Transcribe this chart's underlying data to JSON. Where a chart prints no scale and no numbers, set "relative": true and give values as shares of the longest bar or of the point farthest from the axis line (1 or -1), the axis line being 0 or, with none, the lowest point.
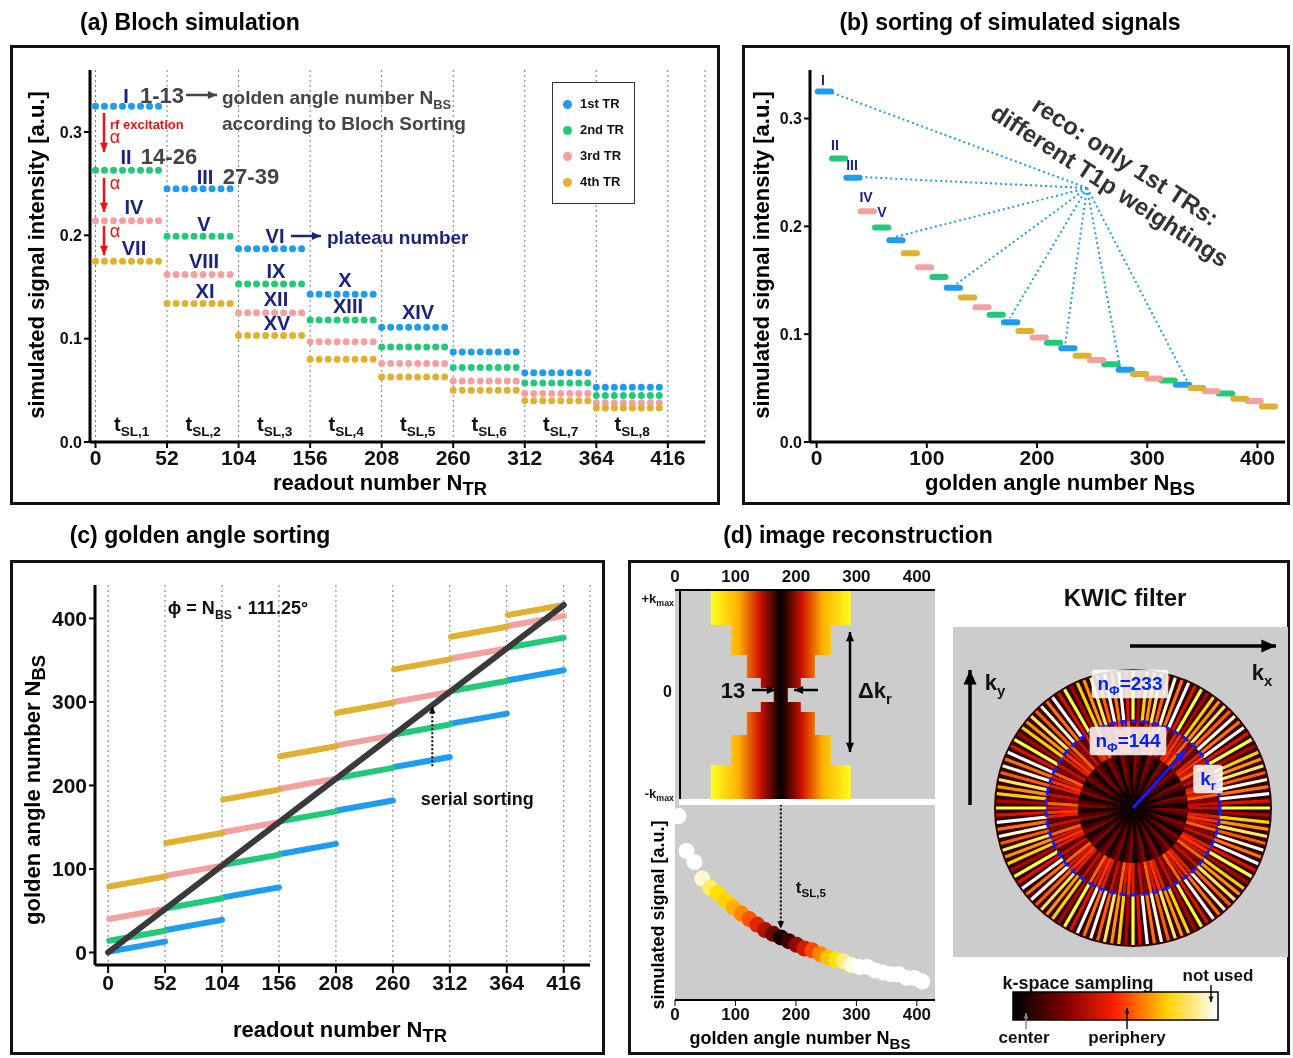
{
  "chart_data": [
    {
      "type": "line",
      "title": "(a) Bloch simulation",
      "xlabel": "readout number N$_{TR}$",
      "ylabel": "simulated signal intensity [a.u.]",
      "series": [
        {
          "name": "1st TR",
          "color": "#1e9cf0",
          "x": [
            0,
            52
          ],
          "values": [
            0.325,
            0.325
          ]
        },
        {
          "color": "#1e9cf0",
          "x": [
            52,
            104
          ],
          "values": [
            0.245,
            0.245
          ]
        },
        {
          "color": "#1e9cf0",
          "x": [
            104,
            156
          ],
          "values": [
            0.187,
            0.187
          ]
        },
        {
          "color": "#1e9cf0",
          "x": [
            156,
            208
          ],
          "values": [
            0.143,
            0.143
          ]
        },
        {
          "color": "#1e9cf0",
          "x": [
            208,
            260
          ],
          "values": [
            0.111,
            0.111
          ]
        },
        {
          "color": "#1e9cf0",
          "x": [
            260,
            312
          ],
          "values": [
            0.087,
            0.087
          ]
        },
        {
          "color": "#1e9cf0",
          "x": [
            312,
            364
          ],
          "values": [
            0.067,
            0.067
          ]
        },
        {
          "color": "#1e9cf0",
          "x": [
            364,
            416
          ],
          "values": [
            0.053,
            0.053
          ]
        },
        {
          "name": "2nd TR",
          "color": "#22c97a",
          "x": [
            0,
            52
          ],
          "values": [
            0.263,
            0.263
          ]
        },
        {
          "color": "#22c97a",
          "x": [
            52,
            104
          ],
          "values": [
            0.199,
            0.199
          ]
        },
        {
          "color": "#22c97a",
          "x": [
            104,
            156
          ],
          "values": [
            0.153,
            0.153
          ]
        },
        {
          "color": "#22c97a",
          "x": [
            156,
            208
          ],
          "values": [
            0.118,
            0.118
          ]
        },
        {
          "color": "#22c97a",
          "x": [
            208,
            260
          ],
          "values": [
            0.092,
            0.092
          ]
        },
        {
          "color": "#22c97a",
          "x": [
            260,
            312
          ],
          "values": [
            0.072,
            0.072
          ]
        },
        {
          "color": "#22c97a",
          "x": [
            312,
            364
          ],
          "values": [
            0.057,
            0.057
          ]
        },
        {
          "color": "#22c97a",
          "x": [
            364,
            416
          ],
          "values": [
            0.045,
            0.045
          ]
        },
        {
          "name": "3rd TR",
          "color": "#f4a0a0",
          "x": [
            0,
            52
          ],
          "values": [
            0.214,
            0.214
          ]
        },
        {
          "color": "#f4a0a0",
          "x": [
            52,
            104
          ],
          "values": [
            0.162,
            0.162
          ]
        },
        {
          "color": "#f4a0a0",
          "x": [
            104,
            156
          ],
          "values": [
            0.125,
            0.125
          ]
        },
        {
          "color": "#f4a0a0",
          "x": [
            156,
            208
          ],
          "values": [
            0.097,
            0.097
          ]
        },
        {
          "color": "#f4a0a0",
          "x": [
            208,
            260
          ],
          "values": [
            0.076,
            0.076
          ]
        },
        {
          "color": "#f4a0a0",
          "x": [
            260,
            312
          ],
          "values": [
            0.059,
            0.059
          ]
        },
        {
          "color": "#f4a0a0",
          "x": [
            312,
            364
          ],
          "values": [
            0.047,
            0.047
          ]
        },
        {
          "color": "#f4a0a0",
          "x": [
            364,
            416
          ],
          "values": [
            0.038,
            0.038
          ]
        },
        {
          "name": "4th TR",
          "color": "#e0b030",
          "x": [
            0,
            52
          ],
          "values": [
            0.175,
            0.175
          ]
        },
        {
          "color": "#e0b030",
          "x": [
            52,
            104
          ],
          "values": [
            0.134,
            0.134
          ]
        },
        {
          "color": "#e0b030",
          "x": [
            104,
            156
          ],
          "values": [
            0.103,
            0.103
          ]
        },
        {
          "color": "#e0b030",
          "x": [
            156,
            208
          ],
          "values": [
            0.08,
            0.08
          ]
        },
        {
          "color": "#e0b030",
          "x": [
            208,
            260
          ],
          "values": [
            0.063,
            0.063
          ]
        },
        {
          "color": "#e0b030",
          "x": [
            260,
            312
          ],
          "values": [
            0.05,
            0.05
          ]
        },
        {
          "color": "#e0b030",
          "x": [
            312,
            364
          ],
          "values": [
            0.04,
            0.04
          ]
        },
        {
          "color": "#e0b030",
          "x": [
            364,
            416
          ],
          "values": [
            0.033,
            0.033
          ]
        }
      ],
      "xlim": [
        -4,
        443
      ],
      "xticks": [
        0,
        52,
        104,
        156,
        208,
        260,
        312,
        364,
        416
      ],
      "ylim": [
        0,
        0.36
      ],
      "yticks": [
        {
          "value": 0,
          "label": "0.0"
        },
        0.1,
        0.2,
        0.3
      ],
      "grid": "x",
      "legend": "top right",
      "line_style": "dotted",
      "annotations": [
        "I",
        "II",
        "III",
        "IV",
        "V",
        "VI",
        "VII",
        "VIII",
        "IX",
        "X",
        "XI",
        "XII",
        "XIII",
        "XIV",
        "XV",
        "1-13",
        "14-26",
        "27-39",
        "golden angle number N$_{BS}$",
        "according to Bloch Sorting",
        "rf excitation",
        "α",
        "α",
        "α",
        "plateau number",
        "t$_{SL,1}$",
        "t$_{SL,2}$",
        "t$_{SL,3}$",
        "t$_{SL,4}$",
        "t$_{SL,5}$",
        "t$_{SL,6}$",
        "t$_{SL,7}$",
        "t$_{SL,8}$"
      ]
    },
    {
      "type": "line",
      "title": "(b) sorting of simulated signals",
      "xlabel": "golden angle number N$_{BS}$",
      "ylabel": "simulated signal intensity [a.u.]",
      "line_style": "solid",
      "series": [
        {
          "color": "#1e9cf0",
          "x": [
            1,
            13
          ],
          "values": [
            0.325,
            0.325
          ]
        },
        {
          "color": "#1e9cf0",
          "x": [
            27,
            39
          ],
          "values": [
            0.245,
            0.245
          ]
        },
        {
          "color": "#1e9cf0",
          "x": [
            66,
            78
          ],
          "values": [
            0.187,
            0.187
          ]
        },
        {
          "color": "#1e9cf0",
          "x": [
            118,
            130
          ],
          "values": [
            0.143,
            0.143
          ]
        },
        {
          "color": "#1e9cf0",
          "x": [
            170,
            182
          ],
          "values": [
            0.111,
            0.111
          ]
        },
        {
          "color": "#1e9cf0",
          "x": [
            222,
            234
          ],
          "values": [
            0.087,
            0.087
          ]
        },
        {
          "color": "#1e9cf0",
          "x": [
            274,
            286
          ],
          "values": [
            0.067,
            0.067
          ]
        },
        {
          "color": "#1e9cf0",
          "x": [
            326,
            338
          ],
          "values": [
            0.053,
            0.053
          ]
        },
        {
          "color": "#22c97a",
          "x": [
            14,
            26
          ],
          "values": [
            0.263,
            0.263
          ]
        },
        {
          "color": "#22c97a",
          "x": [
            53,
            65
          ],
          "values": [
            0.199,
            0.199
          ]
        },
        {
          "color": "#22c97a",
          "x": [
            105,
            117
          ],
          "values": [
            0.153,
            0.153
          ]
        },
        {
          "color": "#22c97a",
          "x": [
            157,
            169
          ],
          "values": [
            0.118,
            0.118
          ]
        },
        {
          "color": "#22c97a",
          "x": [
            209,
            221
          ],
          "values": [
            0.092,
            0.092
          ]
        },
        {
          "color": "#22c97a",
          "x": [
            261,
            273
          ],
          "values": [
            0.072,
            0.072
          ]
        },
        {
          "color": "#22c97a",
          "x": [
            313,
            325
          ],
          "values": [
            0.057,
            0.057
          ]
        },
        {
          "color": "#22c97a",
          "x": [
            365,
            377
          ],
          "values": [
            0.045,
            0.045
          ]
        },
        {
          "color": "#f4a0a0",
          "x": [
            40,
            52
          ],
          "values": [
            0.214,
            0.214
          ]
        },
        {
          "color": "#f4a0a0",
          "x": [
            92,
            104
          ],
          "values": [
            0.162,
            0.162
          ]
        },
        {
          "color": "#f4a0a0",
          "x": [
            144,
            156
          ],
          "values": [
            0.125,
            0.125
          ]
        },
        {
          "color": "#f4a0a0",
          "x": [
            196,
            208
          ],
          "values": [
            0.097,
            0.097
          ]
        },
        {
          "color": "#f4a0a0",
          "x": [
            248,
            260
          ],
          "values": [
            0.076,
            0.076
          ]
        },
        {
          "color": "#f4a0a0",
          "x": [
            300,
            312
          ],
          "values": [
            0.059,
            0.059
          ]
        },
        {
          "color": "#f4a0a0",
          "x": [
            352,
            364
          ],
          "values": [
            0.047,
            0.047
          ]
        },
        {
          "color": "#f4a0a0",
          "x": [
            391,
            403
          ],
          "values": [
            0.038,
            0.038
          ]
        },
        {
          "color": "#e0b030",
          "x": [
            79,
            91
          ],
          "values": [
            0.175,
            0.175
          ]
        },
        {
          "color": "#e0b030",
          "x": [
            131,
            143
          ],
          "values": [
            0.134,
            0.134
          ]
        },
        {
          "color": "#e0b030",
          "x": [
            183,
            195
          ],
          "values": [
            0.103,
            0.103
          ]
        },
        {
          "color": "#e0b030",
          "x": [
            235,
            247
          ],
          "values": [
            0.08,
            0.08
          ]
        },
        {
          "color": "#e0b030",
          "x": [
            287,
            299
          ],
          "values": [
            0.063,
            0.063
          ]
        },
        {
          "color": "#e0b030",
          "x": [
            339,
            351
          ],
          "values": [
            0.05,
            0.05
          ]
        },
        {
          "color": "#e0b030",
          "x": [
            378,
            390
          ],
          "values": [
            0.04,
            0.04
          ]
        },
        {
          "color": "#e0b030",
          "x": [
            404,
            416
          ],
          "values": [
            0.033,
            0.033
          ]
        }
      ],
      "xlim": [
        -6,
        425
      ],
      "xticks": [
        0,
        100,
        200,
        300,
        400
      ],
      "ylim": [
        0,
        0.345
      ],
      "yticks": [
        {
          "value": 0,
          "label": "0.0"
        },
        0.1,
        0.2,
        0.3
      ],
      "annotations": [
        "I",
        "II",
        "III",
        "IV",
        "V",
        {
          "text": "reco: only 1st TRs: different T1p weightings",
          "x": 338,
          "y": 0.053
        }
      ]
    },
    {
      "type": "line",
      "title": "(c) golden angle sorting",
      "xlabel": "readout number N$_{TR}$",
      "ylabel": "golden angle number N$_{BS}$",
      "line_style": "solid",
      "grid": "x",
      "series": [
        {
          "color": "#1e9cf0",
          "x": [
            1,
            52
          ],
          "values": [
            1,
            13
          ]
        },
        {
          "color": "#1e9cf0",
          "x": [
            53,
            104
          ],
          "values": [
            27,
            39
          ]
        },
        {
          "color": "#1e9cf0",
          "x": [
            105,
            156
          ],
          "values": [
            66,
            78
          ]
        },
        {
          "color": "#1e9cf0",
          "x": [
            157,
            208
          ],
          "values": [
            118,
            130
          ]
        },
        {
          "color": "#1e9cf0",
          "x": [
            209,
            260
          ],
          "values": [
            170,
            182
          ]
        },
        {
          "color": "#1e9cf0",
          "x": [
            261,
            312
          ],
          "values": [
            222,
            234
          ]
        },
        {
          "color": "#1e9cf0",
          "x": [
            313,
            364
          ],
          "values": [
            274,
            286
          ]
        },
        {
          "color": "#1e9cf0",
          "x": [
            365,
            416
          ],
          "values": [
            326,
            338
          ]
        },
        {
          "color": "#22c97a",
          "x": [
            1,
            52
          ],
          "values": [
            14,
            26
          ]
        },
        {
          "color": "#22c97a",
          "x": [
            53,
            104
          ],
          "values": [
            53,
            65
          ]
        },
        {
          "color": "#22c97a",
          "x": [
            105,
            156
          ],
          "values": [
            105,
            117
          ]
        },
        {
          "color": "#22c97a",
          "x": [
            157,
            208
          ],
          "values": [
            157,
            169
          ]
        },
        {
          "color": "#22c97a",
          "x": [
            209,
            260
          ],
          "values": [
            209,
            221
          ]
        },
        {
          "color": "#22c97a",
          "x": [
            261,
            312
          ],
          "values": [
            261,
            273
          ]
        },
        {
          "color": "#22c97a",
          "x": [
            313,
            364
          ],
          "values": [
            313,
            325
          ]
        },
        {
          "color": "#22c97a",
          "x": [
            365,
            416
          ],
          "values": [
            365,
            377
          ]
        },
        {
          "color": "#f4a0a0",
          "x": [
            1,
            52
          ],
          "values": [
            40,
            52
          ]
        },
        {
          "color": "#f4a0a0",
          "x": [
            53,
            104
          ],
          "values": [
            92,
            104
          ]
        },
        {
          "color": "#f4a0a0",
          "x": [
            105,
            156
          ],
          "values": [
            144,
            156
          ]
        },
        {
          "color": "#f4a0a0",
          "x": [
            157,
            208
          ],
          "values": [
            196,
            208
          ]
        },
        {
          "color": "#f4a0a0",
          "x": [
            209,
            260
          ],
          "values": [
            248,
            260
          ]
        },
        {
          "color": "#f4a0a0",
          "x": [
            261,
            312
          ],
          "values": [
            300,
            312
          ]
        },
        {
          "color": "#f4a0a0",
          "x": [
            313,
            364
          ],
          "values": [
            352,
            364
          ]
        },
        {
          "color": "#f4a0a0",
          "x": [
            365,
            416
          ],
          "values": [
            391,
            403
          ]
        },
        {
          "color": "#e0b030",
          "x": [
            1,
            52
          ],
          "values": [
            79,
            91
          ]
        },
        {
          "color": "#e0b030",
          "x": [
            53,
            104
          ],
          "values": [
            131,
            143
          ]
        },
        {
          "color": "#e0b030",
          "x": [
            105,
            156
          ],
          "values": [
            183,
            195
          ]
        },
        {
          "color": "#e0b030",
          "x": [
            157,
            208
          ],
          "values": [
            235,
            247
          ]
        },
        {
          "color": "#e0b030",
          "x": [
            209,
            260
          ],
          "values": [
            287,
            299
          ]
        },
        {
          "color": "#e0b030",
          "x": [
            261,
            312
          ],
          "values": [
            339,
            351
          ]
        },
        {
          "color": "#e0b030",
          "x": [
            313,
            364
          ],
          "values": [
            378,
            390
          ]
        },
        {
          "color": "#e0b030",
          "x": [
            365,
            416
          ],
          "values": [
            404,
            416
          ]
        },
        {
          "color": "#3a3a3a",
          "x": [
            0,
            416
          ],
          "values": [
            0,
            416
          ]
        }
      ],
      "xlim": [
        -12,
        440
      ],
      "xticks": [
        0,
        52,
        104,
        156,
        208,
        260,
        312,
        364,
        416
      ],
      "ylim": [
        -15,
        440
      ],
      "yticks": [
        0,
        100,
        200,
        300,
        400
      ],
      "annotations": [
        "ϕ = N$_{BS}$ · 111.25°",
        {
          "text": "serial sorting",
          "x": 296,
          "y": 296
        }
      ]
    },
    {
      "type": "scatter",
      "title": "(d) image reconstruction",
      "relative": true,
      "marker": "circle",
      "x2lim": [
        0,
        430
      ],
      "x2ticks": [
        0,
        100,
        200,
        300,
        400
      ],
      "xlabel": "golden angle number N$_{BS}$",
      "ylabel": "simulated signal [a.u.]",
      "xlim": [
        0,
        430
      ],
      "xticks": [
        0,
        100,
        200,
        300,
        400
      ],
      "x": [
        6,
        19,
        32,
        45,
        58,
        71,
        84,
        97,
        110,
        123,
        136,
        149,
        162,
        175,
        188,
        201,
        214,
        227,
        240,
        253,
        266,
        279,
        292,
        305,
        318,
        331,
        344,
        357,
        370,
        383,
        396,
        409
      ],
      "values": [
        1,
        0.81,
        0.75,
        0.66,
        0.61,
        0.58,
        0.54,
        0.5,
        0.47,
        0.44,
        0.41,
        0.38,
        0.36,
        0.34,
        0.32,
        0.3,
        0.28,
        0.27,
        0.25,
        0.23,
        0.22,
        0.21,
        0.19,
        0.18,
        0.18,
        0.16,
        0.15,
        0.14,
        0.14,
        0.12,
        0.12,
        0.1
      ],
      "colors": [
        "#ffffff",
        "#ffffff",
        "#ffffff",
        "#fff8d0",
        "#ffee60",
        "#ffe000",
        "#ffd000",
        "#ffb000",
        "#ff8800",
        "#ff5500",
        "#e02800",
        "#b01400",
        "#700500",
        "#1a0000",
        "#400000",
        "#900a00",
        "#d01c00",
        "#ff4400",
        "#ff8800",
        "#ffc000",
        "#ffe400",
        "#fff080",
        "#fffce0",
        "#ffffff",
        "#ffffff",
        "#ffffff",
        "#ffffff",
        "#ffffff",
        "#ffffff",
        "#ffffff",
        "#ffffff",
        "#ffffff"
      ],
      "annotations": [
        "+k$_{max}$",
        "0",
        "-k$_{max}$",
        "13",
        "Δk$_{r}$",
        {
          "text": "t$_{SL,5}$",
          "x": 175,
          "y": 0.34
        }
      ]
    },
    {
      "type": "other",
      "title": "KWIC filter",
      "clabel": "k-space sampling",
      "annotations": [
        "k$_{x}$",
        "k$_{y}$",
        "n$_{Φ}$=233",
        "n$_{Φ}$=144",
        "k$_{r}$",
        "center",
        "periphery",
        "not used"
      ]
    }
  ]
}
